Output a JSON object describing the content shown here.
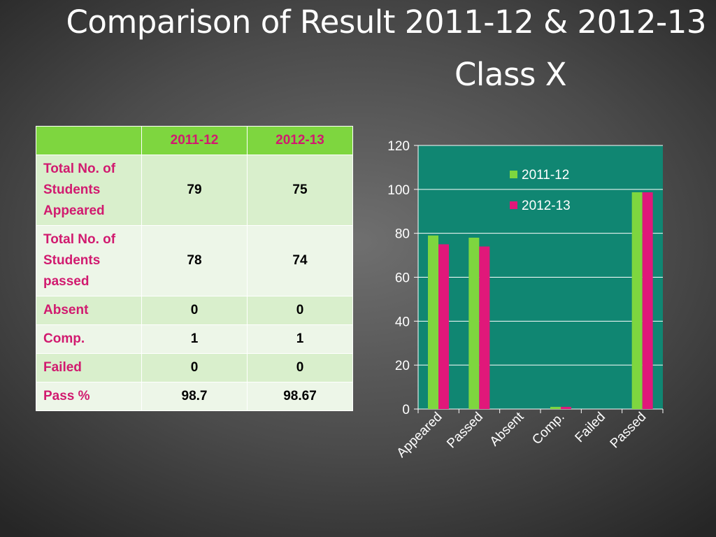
{
  "slide": {
    "title_line1": "Comparison of Result 2011-12 & 2012-13",
    "title_line2": "Class X"
  },
  "table": {
    "headers": [
      "",
      "2011-12",
      "2012-13"
    ],
    "rows": [
      {
        "label": "Total No. of Students Appeared",
        "v1": "79",
        "v2": "75"
      },
      {
        "label": "Total No. of Students passed",
        "v1": "78",
        "v2": "74"
      },
      {
        "label": "Absent",
        "v1": "0",
        "v2": "0"
      },
      {
        "label": "Comp.",
        "v1": "1",
        "v2": "1"
      },
      {
        "label": "Failed",
        "v1": "0",
        "v2": "0"
      },
      {
        "label": "Pass %",
        "v1": "98.7",
        "v2": "98.67"
      }
    ]
  },
  "colors": {
    "plot_bg": "#108672",
    "series_2011": "#7ed63f",
    "series_2012": "#e0187a",
    "label_pink": "#d11a6f"
  },
  "chart_data": {
    "type": "bar",
    "categories": [
      "Appeared",
      "Passed",
      "Absent",
      "Comp.",
      "Failed",
      "Passed"
    ],
    "series": [
      {
        "name": "2011-12",
        "values": [
          79,
          78,
          0,
          1,
          0,
          98.7
        ]
      },
      {
        "name": "2012-13",
        "values": [
          75,
          74,
          0,
          1,
          0,
          98.67
        ]
      }
    ],
    "ylim": [
      0,
      120
    ],
    "yticks": [
      0,
      20,
      40,
      60,
      80,
      100,
      120
    ],
    "grid": true,
    "legend": "top-right",
    "title": "",
    "xlabel": "",
    "ylabel": ""
  }
}
